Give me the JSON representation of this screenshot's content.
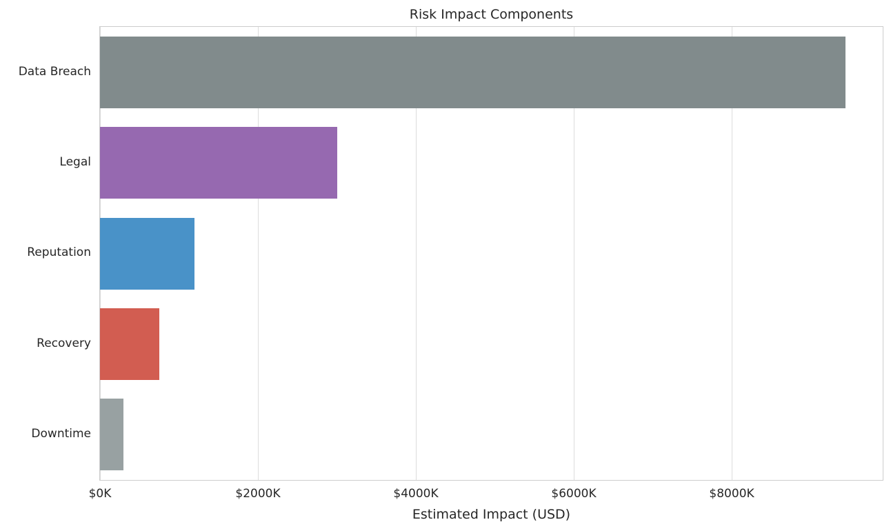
{
  "chart_data": {
    "type": "bar",
    "orientation": "horizontal",
    "title": "Risk Impact Components",
    "xlabel": "Estimated Impact (USD)",
    "ylabel": "",
    "categories": [
      "Data Breach",
      "Legal",
      "Reputation",
      "Recovery",
      "Downtime"
    ],
    "values": [
      9440,
      3000,
      1200,
      750,
      300
    ],
    "values_unit": "thousand USD (axis labels formatted as $NK)",
    "bar_colors": [
      "#818b8c",
      "#9669b0",
      "#4992c8",
      "#d25d51",
      "#98a1a2"
    ],
    "xlim": [
      0,
      9912
    ],
    "xticks": [
      {
        "value": 0,
        "label": "$0K"
      },
      {
        "value": 2000,
        "label": "$2000K"
      },
      {
        "value": 4000,
        "label": "$4000K"
      },
      {
        "value": 6000,
        "label": "$6000K"
      },
      {
        "value": 8000,
        "label": "$8000K"
      }
    ],
    "grid": "vertical-gridlines-on",
    "legend": "none",
    "background_color": "#ffffff",
    "axis_border_color": "#cccccc",
    "gridline_color": "#dcdcdc",
    "text_color": "#262626"
  }
}
